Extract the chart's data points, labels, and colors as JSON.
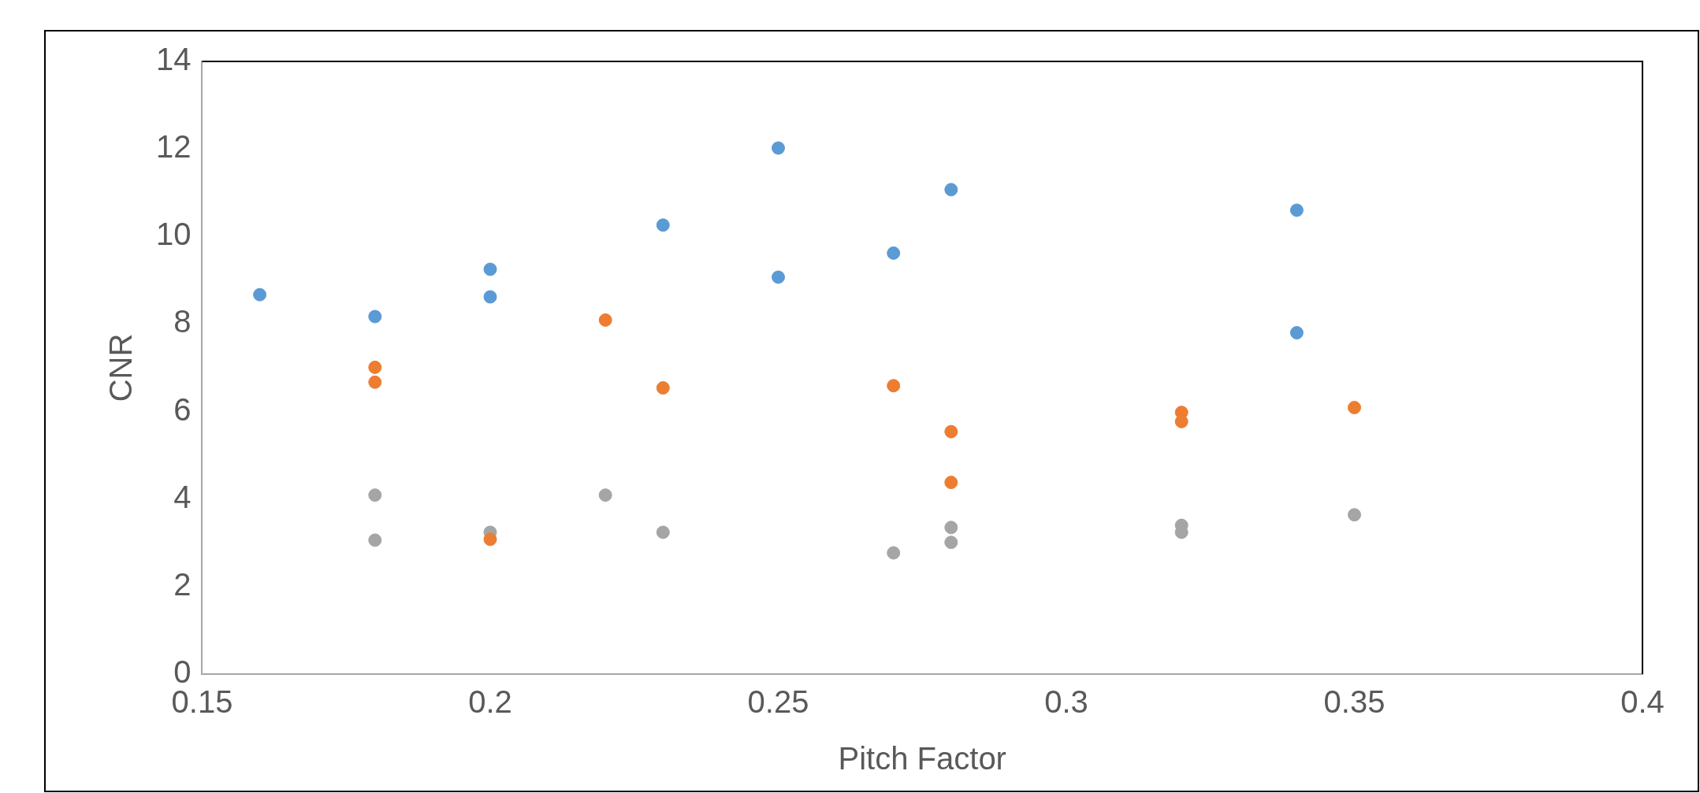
{
  "chart_data": {
    "type": "scatter",
    "xlabel": "Pitch Factor",
    "ylabel": "CNR",
    "xlim": [
      0.15,
      0.4
    ],
    "xticks": [
      0.15,
      0.2,
      0.25,
      0.3,
      0.35,
      0.4
    ],
    "ylim": [
      0,
      14
    ],
    "yticks": [
      0,
      2,
      4,
      6,
      8,
      10,
      12,
      14
    ],
    "grid": false,
    "legend": false,
    "marker": "circle",
    "series": [
      {
        "color": "#5b9bd5",
        "x": [
          0.16,
          0.18,
          0.2,
          0.2,
          0.23,
          0.25,
          0.25,
          0.27,
          0.28,
          0.34,
          0.34
        ],
        "values": [
          8.67,
          8.17,
          9.25,
          8.62,
          10.26,
          12.02,
          9.07,
          9.62,
          11.07,
          10.6,
          7.8
        ]
      },
      {
        "color": "#ed7d31",
        "x": [
          0.18,
          0.18,
          0.22,
          0.23,
          0.2,
          0.27,
          0.28,
          0.28,
          0.32,
          0.32,
          0.35
        ],
        "values": [
          7.01,
          6.67,
          8.09,
          6.54,
          3.08,
          6.59,
          5.54,
          4.38,
          5.98,
          5.77,
          6.09
        ]
      },
      {
        "color": "#a5a5a5",
        "x": [
          0.18,
          0.18,
          0.2,
          0.22,
          0.23,
          0.27,
          0.28,
          0.28,
          0.32,
          0.32,
          0.35
        ],
        "values": [
          4.09,
          3.06,
          3.24,
          4.09,
          3.24,
          2.77,
          3.35,
          3.01,
          3.4,
          3.24,
          3.64
        ]
      }
    ]
  }
}
